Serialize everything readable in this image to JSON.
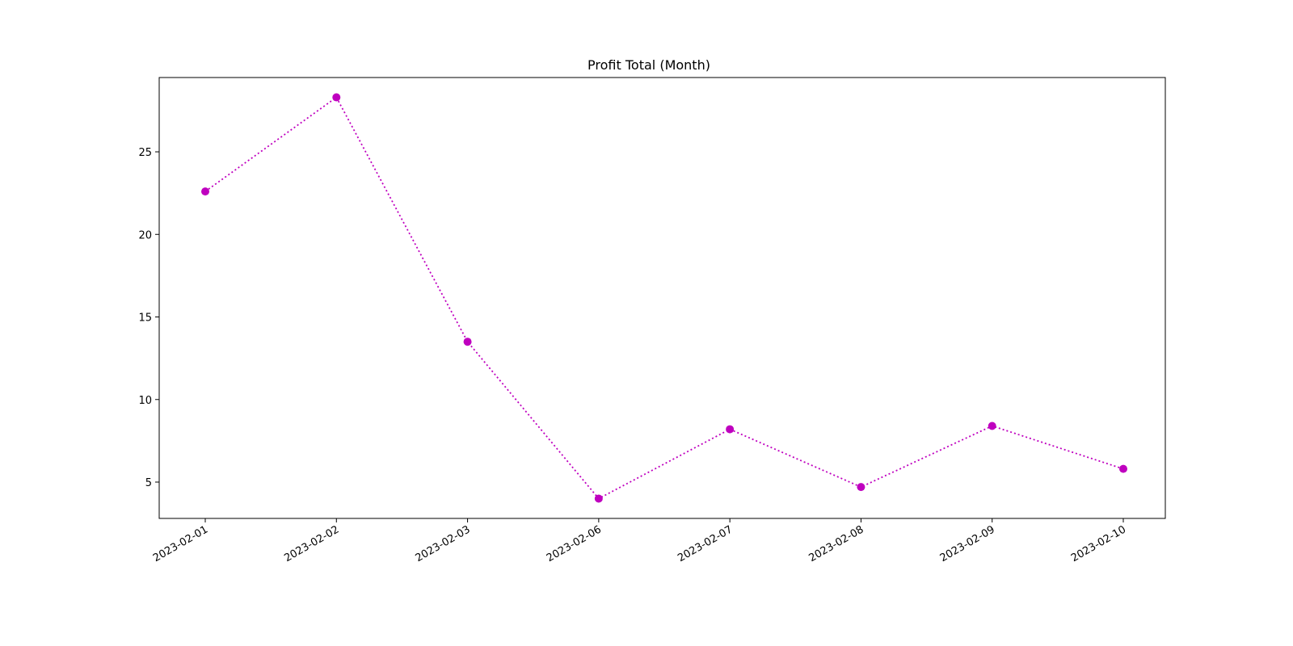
{
  "chart_data": {
    "type": "line",
    "title": "Profit Total (Month)",
    "xlabel": "",
    "ylabel": "",
    "categories": [
      "2023-02-01",
      "2023-02-02",
      "2023-02-03",
      "2023-02-06",
      "2023-02-07",
      "2023-02-08",
      "2023-02-09",
      "2023-02-10"
    ],
    "series": [
      {
        "values": [
          22.6,
          28.3,
          13.5,
          4.0,
          8.2,
          4.7,
          8.4,
          5.8
        ],
        "color": "#bf00bf",
        "line_style": "dotted",
        "marker": "circle"
      }
    ],
    "ylim": [
      2.8,
      29.5
    ],
    "yticks": [
      5,
      10,
      15,
      20,
      25
    ],
    "grid": false,
    "legend": "none"
  }
}
